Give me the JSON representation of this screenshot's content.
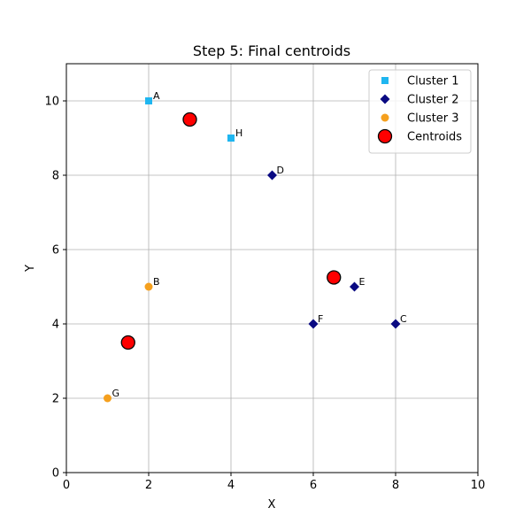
{
  "chart_data": {
    "type": "scatter",
    "title": "Step 5: Final centroids",
    "xlabel": "X",
    "ylabel": "Y",
    "xlim": [
      0,
      10
    ],
    "ylim": [
      0,
      11
    ],
    "xticks": [
      0,
      2,
      4,
      6,
      8,
      10
    ],
    "yticks": [
      0,
      2,
      4,
      6,
      8,
      10
    ],
    "grid": true,
    "legend_position": "top-right",
    "series": [
      {
        "name": "Cluster 1",
        "marker": "square",
        "color": "#1fb6f0",
        "points": [
          {
            "label": "A",
            "x": 2,
            "y": 10
          },
          {
            "label": "H",
            "x": 4,
            "y": 9
          }
        ]
      },
      {
        "name": "Cluster 2",
        "marker": "diamond",
        "color": "#0a0a82",
        "points": [
          {
            "label": "D",
            "x": 5,
            "y": 8
          },
          {
            "label": "E",
            "x": 7,
            "y": 5
          },
          {
            "label": "F",
            "x": 6,
            "y": 4
          },
          {
            "label": "C",
            "x": 8,
            "y": 4
          }
        ]
      },
      {
        "name": "Cluster 3",
        "marker": "circle",
        "color": "#f5a01e",
        "points": [
          {
            "label": "B",
            "x": 2,
            "y": 5
          },
          {
            "label": "G",
            "x": 1,
            "y": 2
          }
        ]
      },
      {
        "name": "Centroids",
        "marker": "big-circle",
        "color": "#ff0000",
        "points": [
          {
            "x": 3,
            "y": 9.5
          },
          {
            "x": 6.5,
            "y": 5.25
          },
          {
            "x": 1.5,
            "y": 3.5
          }
        ]
      }
    ]
  }
}
